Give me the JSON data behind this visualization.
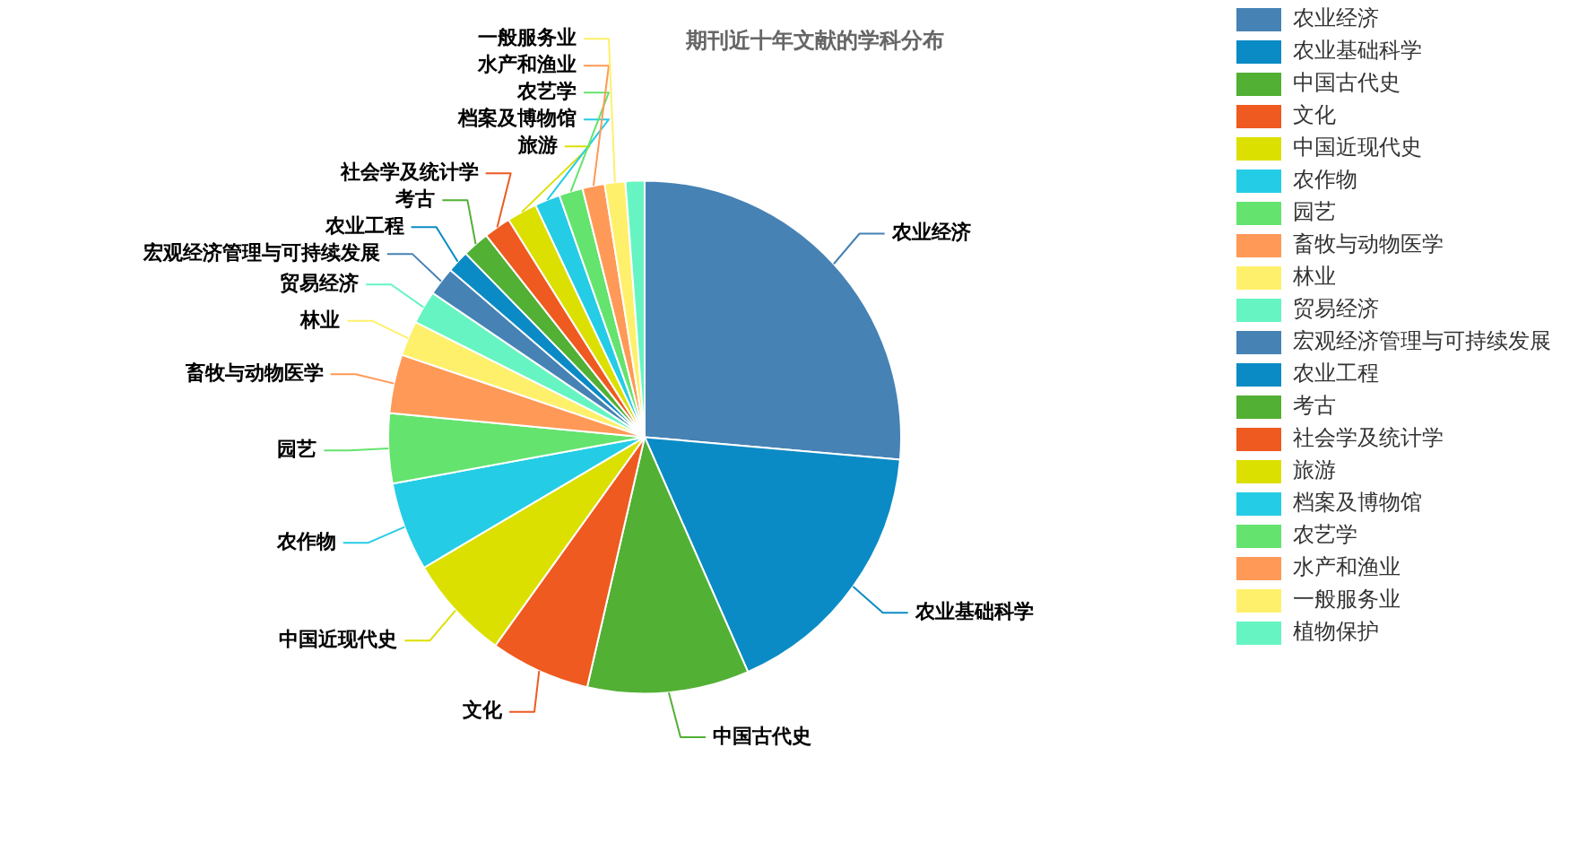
{
  "chart_data": {
    "type": "pie",
    "title": "期刊近十年文献的学科分布",
    "categories": [
      "农业经济",
      "农业基础科学",
      "中国古代史",
      "文化",
      "中国近现代史",
      "农作物",
      "园艺",
      "畜牧与动物医学",
      "林业",
      "贸易经济",
      "宏观经济管理与可持续发展",
      "农业工程",
      "考古",
      "社会学及统计学",
      "旅游",
      "档案及博物馆",
      "农艺学",
      "水产和渔业",
      "一般服务业",
      "植物保护"
    ],
    "values": [
      26.4,
      17,
      10.2,
      6.3,
      6.6,
      5.6,
      4.4,
      3.7,
      2.2,
      2.1,
      1.8,
      1.4,
      1.7,
      1.7,
      1.9,
      1.6,
      1.5,
      1.4,
      1.3,
      1.2
    ],
    "colors": [
      "#4682b4",
      "#0b8bc5",
      "#52b034",
      "#ee5a20",
      "#dbe000",
      "#25cce6",
      "#64e36e",
      "#ff9957",
      "#fff06b",
      "#66f5c2",
      "#4682b4",
      "#0b8bc5",
      "#52b034",
      "#ee5a20",
      "#dbe000",
      "#25cce6",
      "#64e36e",
      "#ff9957",
      "#fff06b",
      "#66f5c2"
    ],
    "legend": "right"
  }
}
